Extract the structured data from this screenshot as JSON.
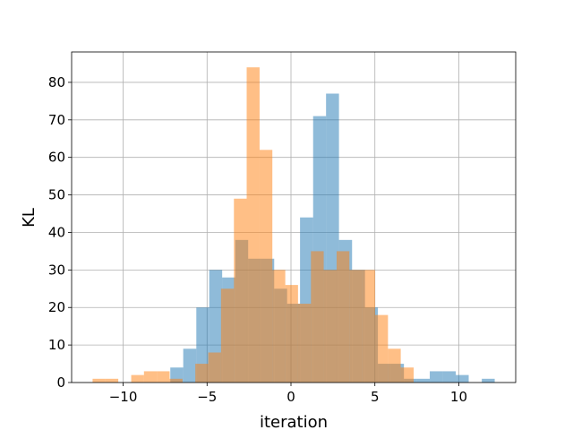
{
  "chart_data": {
    "type": "histogram",
    "xlabel": "iteration",
    "ylabel": "KL",
    "series": [
      {
        "color": "#1f77b4",
        "opacity": 0.5,
        "bins": [
          -7.19,
          -6.42,
          -5.64,
          -4.87,
          -4.1,
          -3.32,
          -2.55,
          -1.78,
          -1.0,
          -0.23,
          0.54,
          1.32,
          2.09,
          2.86,
          3.64,
          4.41,
          5.18,
          5.95,
          6.73,
          7.5,
          8.27,
          9.05,
          9.82,
          10.59,
          11.37,
          12.14
        ],
        "values": [
          4,
          9,
          20,
          30,
          28,
          38,
          33,
          33,
          25,
          21,
          44,
          71,
          77,
          38,
          30,
          20,
          5,
          5,
          1,
          1,
          3,
          3,
          2,
          0,
          1
        ]
      },
      {
        "color": "#ff7f0e",
        "opacity": 0.5,
        "bins": [
          -11.82,
          -11.05,
          -10.29,
          -9.52,
          -8.76,
          -7.99,
          -7.23,
          -6.46,
          -5.7,
          -4.93,
          -4.17,
          -3.4,
          -2.64,
          -1.87,
          -1.11,
          -0.34,
          0.42,
          1.19,
          1.95,
          2.72,
          3.48,
          4.25,
          5.01,
          5.78,
          6.54,
          7.31
        ],
        "values": [
          1,
          1,
          0,
          2,
          3,
          3,
          1,
          0,
          5,
          8,
          25,
          49,
          84,
          62,
          30,
          26,
          21,
          35,
          30,
          35,
          30,
          30,
          18,
          9,
          4
        ]
      }
    ],
    "xlim": [
      -13.07,
      13.39
    ],
    "xticks": [
      {
        "value": -10,
        "label": "−10"
      },
      {
        "value": -5,
        "label": "−5"
      },
      0,
      5,
      10
    ],
    "ylim": [
      0,
      88.1
    ],
    "yticks": [
      0,
      10,
      20,
      30,
      40,
      50,
      60,
      70,
      80
    ],
    "grid": true
  }
}
